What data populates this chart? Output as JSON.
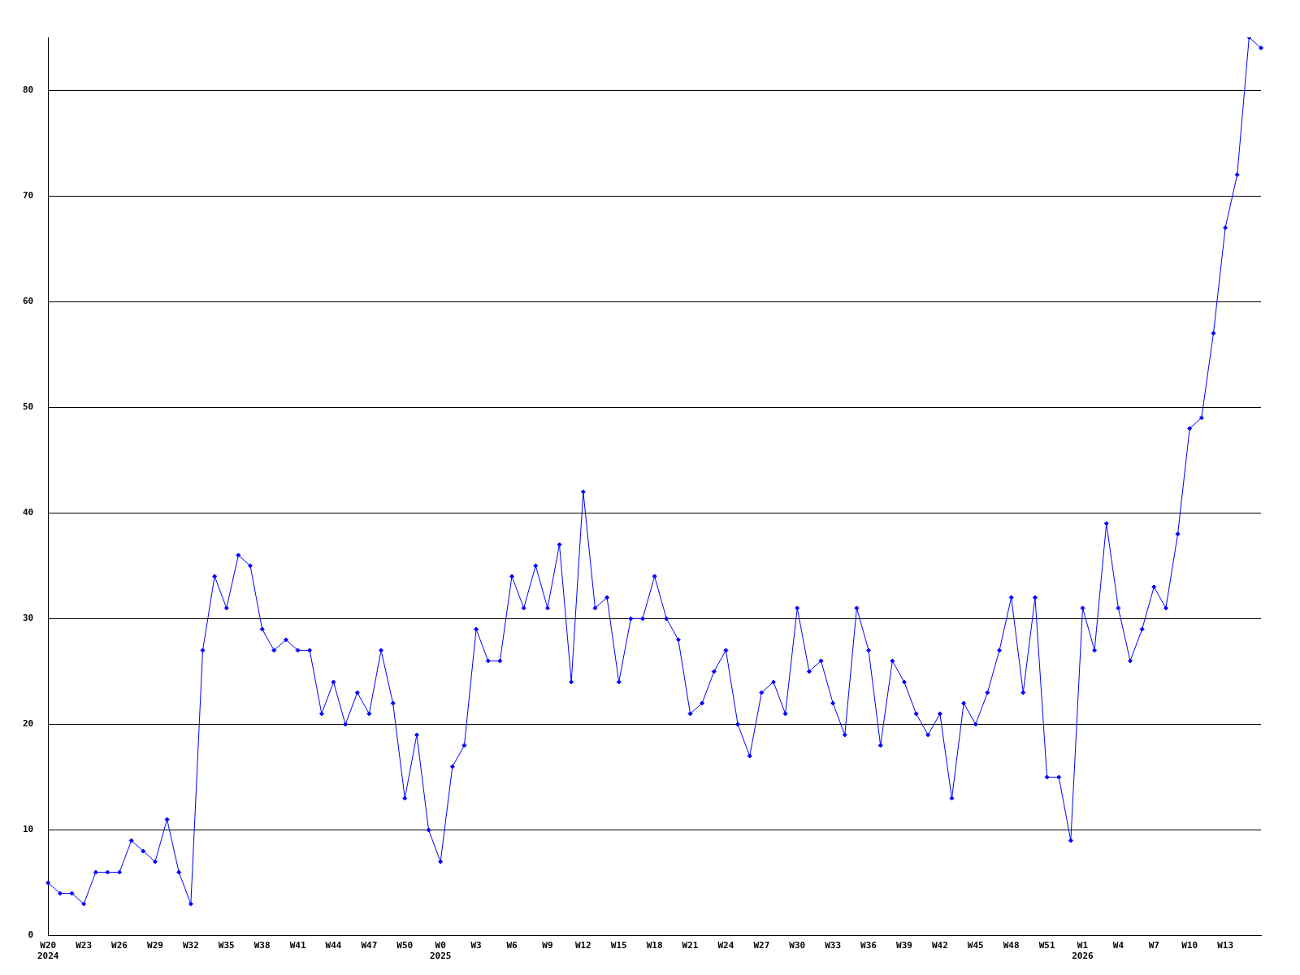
{
  "chart_data": {
    "type": "line",
    "categories": [
      "W20\n2024",
      null,
      null,
      "W23",
      null,
      null,
      "W26",
      null,
      null,
      "W29",
      null,
      null,
      "W32",
      null,
      null,
      "W35",
      null,
      null,
      "W38",
      null,
      null,
      "W41",
      null,
      null,
      "W44",
      null,
      null,
      "W47",
      null,
      null,
      "W50",
      null,
      null,
      "W0\n2025",
      null,
      null,
      "W3",
      null,
      null,
      "W6",
      null,
      null,
      "W9",
      null,
      null,
      "W12",
      null,
      null,
      "W15",
      null,
      null,
      "W18",
      null,
      null,
      "W21",
      null,
      null,
      "W24",
      null,
      null,
      "W27",
      null,
      null,
      "W30",
      null,
      null,
      "W33",
      null,
      null,
      "W36",
      null,
      null,
      "W39",
      null,
      null,
      "W42",
      null,
      null,
      "W45",
      null,
      null,
      "W48",
      null,
      null,
      "W51",
      null,
      null,
      "W1\n2026",
      null,
      null,
      "W4",
      null,
      null,
      "W7",
      null,
      null,
      "W10",
      null,
      null,
      "W13",
      null,
      null,
      null
    ],
    "series": [
      {
        "color": "#0000ff",
        "values": [
          5,
          4,
          4,
          3,
          6,
          6,
          6,
          9,
          8,
          7,
          11,
          6,
          3,
          27,
          34,
          31,
          36,
          35,
          29,
          27,
          28,
          27,
          27,
          21,
          24,
          20,
          23,
          21,
          27,
          22,
          13,
          19,
          10,
          7,
          16,
          18,
          29,
          26,
          26,
          34,
          31,
          35,
          31,
          37,
          24,
          42,
          31,
          32,
          24,
          30,
          30,
          34,
          30,
          28,
          21,
          22,
          25,
          27,
          20,
          17,
          23,
          24,
          21,
          31,
          25,
          26,
          22,
          19,
          31,
          27,
          18,
          26,
          24,
          21,
          19,
          21,
          13,
          22,
          20,
          23,
          27,
          32,
          23,
          32,
          15,
          15,
          9,
          31,
          27,
          39,
          31,
          26,
          29,
          33,
          31,
          38,
          48,
          49,
          57,
          67,
          72,
          85,
          84
        ]
      }
    ],
    "ylim": [
      0,
      85
    ],
    "yticks": [
      0,
      10,
      20,
      30,
      40,
      50,
      60,
      70,
      80
    ],
    "grid": "y",
    "marker": "diamond",
    "line_style": "solid"
  }
}
